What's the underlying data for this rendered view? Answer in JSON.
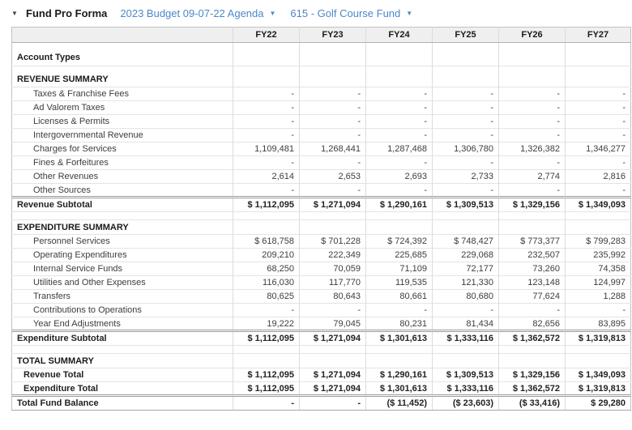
{
  "icons": {
    "caret_down": "▼"
  },
  "colors": {
    "link_blue": "#4d87c9",
    "table_header_bg": "#efefef"
  },
  "header": {
    "title": "Fund Pro Forma",
    "budget_selector": {
      "label": "2023 Budget 09-07-22 Agenda"
    },
    "fund_selector": {
      "label": "615 - Golf Course Fund"
    }
  },
  "table": {
    "columns": [
      "FY22",
      "FY23",
      "FY24",
      "FY25",
      "FY26",
      "FY27"
    ],
    "rows": [
      {
        "label": "Account Types",
        "type": "account",
        "values": [
          "",
          "",
          "",
          "",
          "",
          ""
        ]
      },
      {
        "label": "REVENUE SUMMARY",
        "type": "section-tall",
        "values": [
          "",
          "",
          "",
          "",
          "",
          ""
        ]
      },
      {
        "label": "Taxes & Franchise Fees",
        "type": "detail",
        "values": [
          "-",
          "-",
          "-",
          "-",
          "-",
          "-"
        ]
      },
      {
        "label": "Ad Valorem Taxes",
        "type": "detail",
        "values": [
          "-",
          "-",
          "-",
          "-",
          "-",
          "-"
        ]
      },
      {
        "label": "Licenses & Permits",
        "type": "detail",
        "values": [
          "-",
          "-",
          "-",
          "-",
          "-",
          "-"
        ]
      },
      {
        "label": "Intergovernmental Revenue",
        "type": "detail",
        "values": [
          "-",
          "-",
          "-",
          "-",
          "-",
          "-"
        ]
      },
      {
        "label": "Charges for Services",
        "type": "detail",
        "values": [
          "1,109,481",
          "1,268,441",
          "1,287,468",
          "1,306,780",
          "1,326,382",
          "1,346,277"
        ]
      },
      {
        "label": "Fines & Forfeitures",
        "type": "detail",
        "values": [
          "-",
          "-",
          "-",
          "-",
          "-",
          "-"
        ]
      },
      {
        "label": "Other Revenues",
        "type": "detail",
        "values": [
          "2,614",
          "2,653",
          "2,693",
          "2,733",
          "2,774",
          "2,816"
        ]
      },
      {
        "label": "Other Sources",
        "type": "detail",
        "values": [
          "-",
          "-",
          "-",
          "-",
          "-",
          "-"
        ]
      },
      {
        "label": "Revenue Subtotal",
        "type": "subtotal",
        "values": [
          "$ 1,112,095",
          "$ 1,271,094",
          "$ 1,290,161",
          "$ 1,309,513",
          "$ 1,329,156",
          "$ 1,349,093"
        ]
      },
      {
        "label": "",
        "type": "spacer",
        "values": [
          "",
          "",
          "",
          "",
          "",
          ""
        ]
      },
      {
        "label": "EXPENDITURE SUMMARY",
        "type": "section",
        "values": [
          "",
          "",
          "",
          "",
          "",
          ""
        ]
      },
      {
        "label": "Personnel Services",
        "type": "detail",
        "values": [
          "$ 618,758",
          "$ 701,228",
          "$ 724,392",
          "$ 748,427",
          "$ 773,377",
          "$ 799,283"
        ]
      },
      {
        "label": "Operating Expenditures",
        "type": "detail",
        "values": [
          "209,210",
          "222,349",
          "225,685",
          "229,068",
          "232,507",
          "235,992"
        ]
      },
      {
        "label": "Internal Service Funds",
        "type": "detail",
        "values": [
          "68,250",
          "70,059",
          "71,109",
          "72,177",
          "73,260",
          "74,358"
        ]
      },
      {
        "label": "Utilities and Other Expenses",
        "type": "detail",
        "values": [
          "116,030",
          "117,770",
          "119,535",
          "121,330",
          "123,148",
          "124,997"
        ]
      },
      {
        "label": "Transfers",
        "type": "detail",
        "values": [
          "80,625",
          "80,643",
          "80,661",
          "80,680",
          "77,624",
          "1,288"
        ]
      },
      {
        "label": "Contributions to Operations",
        "type": "detail",
        "values": [
          "-",
          "-",
          "-",
          "-",
          "-",
          "-"
        ]
      },
      {
        "label": "Year End Adjustments",
        "type": "detail",
        "values": [
          "19,222",
          "79,045",
          "80,231",
          "81,434",
          "82,656",
          "83,895"
        ]
      },
      {
        "label": "Expenditure Subtotal",
        "type": "subtotal",
        "values": [
          "$ 1,112,095",
          "$ 1,271,094",
          "$ 1,301,613",
          "$ 1,333,116",
          "$ 1,362,572",
          "$ 1,319,813"
        ]
      },
      {
        "label": "",
        "type": "spacer",
        "values": [
          "",
          "",
          "",
          "",
          "",
          ""
        ]
      },
      {
        "label": "TOTAL SUMMARY",
        "type": "section",
        "values": [
          "",
          "",
          "",
          "",
          "",
          ""
        ]
      },
      {
        "label": "Revenue Total",
        "type": "total",
        "values": [
          "$ 1,112,095",
          "$ 1,271,094",
          "$ 1,290,161",
          "$ 1,309,513",
          "$ 1,329,156",
          "$ 1,349,093"
        ]
      },
      {
        "label": "Expenditure Total",
        "type": "total",
        "values": [
          "$ 1,112,095",
          "$ 1,271,094",
          "$ 1,301,613",
          "$ 1,333,116",
          "$ 1,362,572",
          "$ 1,319,813"
        ]
      },
      {
        "label": "Total Fund Balance",
        "type": "grand",
        "values": [
          "-",
          "-",
          "($ 11,452)",
          "($ 23,603)",
          "($ 33,416)",
          "$ 29,280"
        ]
      }
    ]
  }
}
